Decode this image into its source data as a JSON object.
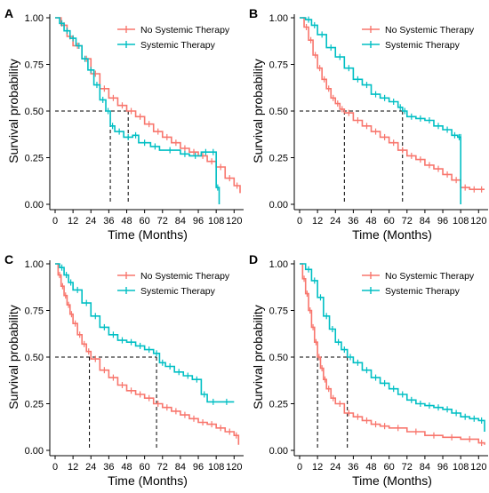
{
  "colors": {
    "no_systemic": "#f8766d",
    "systemic": "#00bfc4",
    "axis": "#000000",
    "reference": "#000000"
  },
  "chart_data": [
    {
      "panel": "A",
      "type": "line",
      "xlabel": "Time (Months)",
      "ylabel": "Survival probability",
      "xlim": [
        0,
        124
      ],
      "ylim": [
        0,
        1
      ],
      "x_ticks": [
        0,
        12,
        24,
        36,
        48,
        60,
        72,
        84,
        96,
        108,
        120
      ],
      "y_ticks": [
        "0.00",
        "0.25",
        "0.50",
        "0.75",
        "1.00"
      ],
      "legend": {
        "position": "top-right",
        "entries": [
          "No Systemic Therapy",
          "Systemic Therapy"
        ]
      },
      "grid": false,
      "median_reference": {
        "y": 0.5,
        "medians": [
          49,
          37
        ]
      },
      "series": [
        {
          "name": "No Systemic Therapy",
          "color": "#f8766d",
          "x": [
            0,
            4,
            8,
            12,
            18,
            24,
            30,
            36,
            42,
            48,
            54,
            60,
            66,
            72,
            78,
            84,
            90,
            96,
            102,
            108,
            114,
            120,
            124
          ],
          "y": [
            1.0,
            0.96,
            0.9,
            0.85,
            0.78,
            0.7,
            0.62,
            0.57,
            0.53,
            0.5,
            0.47,
            0.43,
            0.39,
            0.36,
            0.33,
            0.3,
            0.28,
            0.26,
            0.23,
            0.2,
            0.14,
            0.1,
            0.06
          ]
        },
        {
          "name": "Systemic Therapy",
          "color": "#00bfc4",
          "x": [
            0,
            3,
            6,
            10,
            14,
            18,
            22,
            26,
            30,
            34,
            37,
            40,
            46,
            52,
            56,
            64,
            70,
            84,
            90,
            98,
            104,
            108,
            110
          ],
          "y": [
            1.0,
            0.97,
            0.93,
            0.89,
            0.85,
            0.78,
            0.72,
            0.64,
            0.56,
            0.5,
            0.42,
            0.39,
            0.36,
            0.37,
            0.33,
            0.31,
            0.29,
            0.27,
            0.26,
            0.28,
            0.28,
            0.09,
            0.0
          ]
        }
      ]
    },
    {
      "panel": "B",
      "type": "line",
      "xlabel": "Time (Months)",
      "ylabel": "Survival probability",
      "xlim": [
        0,
        124
      ],
      "ylim": [
        0,
        1
      ],
      "x_ticks": [
        0,
        12,
        24,
        36,
        48,
        60,
        72,
        84,
        96,
        108,
        120
      ],
      "y_ticks": [
        "0.00",
        "0.25",
        "0.50",
        "0.75",
        "1.00"
      ],
      "legend": {
        "position": "top-right",
        "entries": [
          "No Systemic Therapy",
          "Systemic Therapy"
        ]
      },
      "grid": false,
      "median_reference": {
        "y": 0.5,
        "medians": [
          30,
          69
        ]
      },
      "series": [
        {
          "name": "No Systemic Therapy",
          "color": "#f8766d",
          "x": [
            0,
            3,
            6,
            9,
            12,
            15,
            18,
            21,
            24,
            27,
            30,
            36,
            42,
            48,
            54,
            60,
            66,
            72,
            78,
            84,
            90,
            96,
            102,
            108,
            114,
            120,
            124
          ],
          "y": [
            1.0,
            0.95,
            0.88,
            0.8,
            0.73,
            0.67,
            0.62,
            0.57,
            0.54,
            0.51,
            0.49,
            0.45,
            0.42,
            0.39,
            0.36,
            0.33,
            0.29,
            0.26,
            0.24,
            0.21,
            0.19,
            0.16,
            0.13,
            0.09,
            0.08,
            0.08,
            0.08
          ]
        },
        {
          "name": "Systemic Therapy",
          "color": "#00bfc4",
          "x": [
            0,
            4,
            8,
            12,
            18,
            24,
            30,
            36,
            42,
            48,
            54,
            60,
            66,
            69,
            72,
            78,
            84,
            90,
            96,
            102,
            106,
            108,
            108
          ],
          "y": [
            1.0,
            0.99,
            0.96,
            0.91,
            0.84,
            0.79,
            0.73,
            0.67,
            0.64,
            0.59,
            0.57,
            0.55,
            0.52,
            0.5,
            0.47,
            0.46,
            0.45,
            0.42,
            0.4,
            0.37,
            0.36,
            0.36,
            0.0
          ]
        }
      ]
    },
    {
      "panel": "C",
      "type": "line",
      "xlabel": "Time (Months)",
      "ylabel": "Survival probability",
      "xlim": [
        0,
        124
      ],
      "ylim": [
        0,
        1
      ],
      "x_ticks": [
        0,
        12,
        24,
        36,
        48,
        60,
        72,
        84,
        96,
        108,
        120
      ],
      "y_ticks": [
        "0.00",
        "0.25",
        "0.50",
        "0.75",
        "1.00"
      ],
      "legend": {
        "position": "top-right",
        "entries": [
          "No Systemic Therapy",
          "Systemic Therapy"
        ]
      },
      "grid": false,
      "median_reference": {
        "y": 0.5,
        "medians": [
          23,
          68
        ]
      },
      "series": [
        {
          "name": "No Systemic Therapy",
          "color": "#f8766d",
          "x": [
            0,
            2,
            4,
            6,
            8,
            10,
            12,
            15,
            18,
            21,
            24,
            30,
            36,
            42,
            48,
            54,
            60,
            66,
            72,
            78,
            84,
            90,
            96,
            102,
            108,
            114,
            120,
            123
          ],
          "y": [
            1.0,
            0.94,
            0.88,
            0.83,
            0.78,
            0.73,
            0.68,
            0.62,
            0.57,
            0.53,
            0.49,
            0.43,
            0.39,
            0.35,
            0.32,
            0.3,
            0.28,
            0.25,
            0.23,
            0.21,
            0.19,
            0.17,
            0.15,
            0.14,
            0.12,
            0.1,
            0.08,
            0.03
          ]
        },
        {
          "name": "Systemic Therapy",
          "color": "#00bfc4",
          "x": [
            0,
            3,
            6,
            9,
            12,
            18,
            24,
            30,
            36,
            42,
            48,
            54,
            60,
            66,
            70,
            74,
            80,
            86,
            92,
            98,
            102,
            110,
            120
          ],
          "y": [
            1.0,
            0.98,
            0.94,
            0.9,
            0.86,
            0.79,
            0.72,
            0.66,
            0.62,
            0.59,
            0.58,
            0.56,
            0.54,
            0.52,
            0.47,
            0.45,
            0.42,
            0.4,
            0.38,
            0.3,
            0.26,
            0.26,
            0.26
          ]
        }
      ]
    },
    {
      "panel": "D",
      "type": "line",
      "xlabel": "Time (Months)",
      "ylabel": "Survival probability",
      "xlim": [
        0,
        124
      ],
      "ylim": [
        0,
        1
      ],
      "x_ticks": [
        0,
        12,
        24,
        36,
        48,
        60,
        72,
        84,
        96,
        108,
        120
      ],
      "y_ticks": [
        "0.00",
        "0.25",
        "0.50",
        "0.75",
        "1.00"
      ],
      "legend": {
        "position": "top-right",
        "entries": [
          "No Systemic Therapy",
          "Systemic Therapy"
        ]
      },
      "grid": false,
      "median_reference": {
        "y": 0.5,
        "medians": [
          12,
          32
        ]
      },
      "series": [
        {
          "name": "No Systemic Therapy",
          "color": "#f8766d",
          "x": [
            0,
            2,
            4,
            6,
            8,
            10,
            12,
            14,
            16,
            18,
            21,
            24,
            30,
            36,
            42,
            48,
            54,
            60,
            72,
            84,
            96,
            108,
            120,
            124
          ],
          "y": [
            1.0,
            0.92,
            0.84,
            0.75,
            0.66,
            0.58,
            0.5,
            0.44,
            0.38,
            0.33,
            0.28,
            0.25,
            0.2,
            0.18,
            0.16,
            0.14,
            0.13,
            0.12,
            0.1,
            0.08,
            0.07,
            0.06,
            0.04,
            0.03
          ]
        },
        {
          "name": "Systemic Therapy",
          "color": "#00bfc4",
          "x": [
            0,
            4,
            8,
            12,
            16,
            20,
            24,
            28,
            32,
            36,
            42,
            48,
            54,
            60,
            66,
            72,
            78,
            84,
            90,
            96,
            102,
            108,
            114,
            120,
            124
          ],
          "y": [
            1.0,
            0.97,
            0.91,
            0.82,
            0.72,
            0.65,
            0.58,
            0.54,
            0.5,
            0.47,
            0.43,
            0.39,
            0.36,
            0.33,
            0.3,
            0.27,
            0.25,
            0.24,
            0.23,
            0.22,
            0.2,
            0.18,
            0.17,
            0.16,
            0.1
          ]
        }
      ]
    }
  ]
}
